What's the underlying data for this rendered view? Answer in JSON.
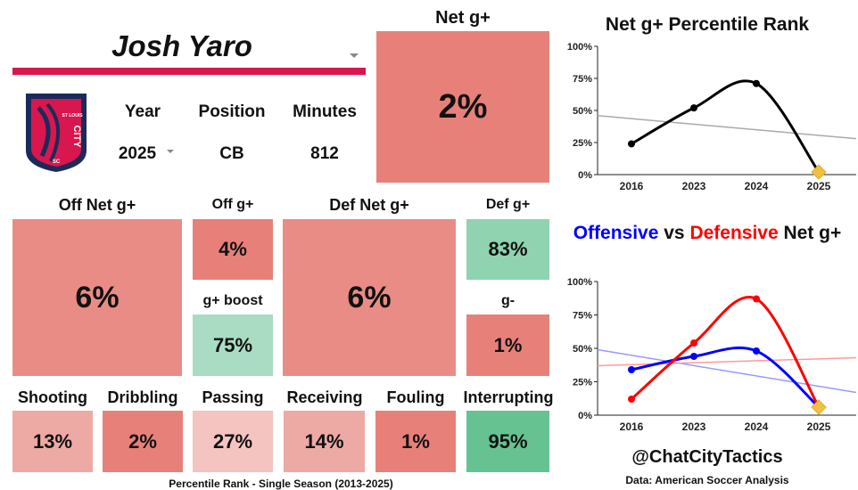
{
  "player": {
    "name": "Josh Yaro",
    "year_label": "Year",
    "year": "2025",
    "position_label": "Position",
    "position": "CB",
    "minutes_label": "Minutes",
    "minutes": "812"
  },
  "crest": {
    "line1": "ST LOUIS",
    "line2": "CITY",
    "line3": "SC"
  },
  "net": {
    "label": "Net g+",
    "value": "2%"
  },
  "off_net": {
    "label": "Off Net g+",
    "value": "6%"
  },
  "off_g": {
    "label": "Off g+",
    "value": "4%"
  },
  "g_boost": {
    "label": "g+ boost",
    "value": "75%"
  },
  "def_net": {
    "label": "Def Net g+",
    "value": "6%"
  },
  "def_g": {
    "label": "Def g+",
    "value": "83%"
  },
  "g_minus": {
    "label": "g-",
    "value": "1%"
  },
  "actions": [
    {
      "label": "Shooting",
      "value": "13%"
    },
    {
      "label": "Dribbling",
      "value": "2%"
    },
    {
      "label": "Passing",
      "value": "27%"
    },
    {
      "label": "Receiving",
      "value": "14%"
    },
    {
      "label": "Fouling",
      "value": "1%"
    },
    {
      "label": "Interrupting",
      "value": "95%"
    }
  ],
  "footer": "Percentile Rank - Single Season (2013-2025)",
  "handle": "@ChatCityTactics",
  "source": "Data: American Soccer Analysis",
  "colors": {
    "red_strong": "#e8807a",
    "red_mid": "#e98c86",
    "red_light": "#eda9a4",
    "red_pale": "#f3c4c0",
    "green_light": "#a9dcc3",
    "green_mid": "#8fd3b1",
    "green_strong": "#66c291",
    "brand_bar": "#d8174e"
  },
  "chart_data": [
    {
      "type": "line",
      "title": "Net g+ Percentile Rank",
      "categories": [
        "2016",
        "2023",
        "2024",
        "2025"
      ],
      "series": [
        {
          "values": [
            24,
            52,
            71,
            2
          ]
        }
      ],
      "trend": [
        46,
        28
      ],
      "ylim": [
        0,
        100
      ],
      "yticks": [
        "0%",
        "25%",
        "50%",
        "75%",
        "100%"
      ],
      "grid": false
    },
    {
      "type": "line",
      "title_parts": [
        "Offensive",
        " vs ",
        "Defensive",
        " Net g+"
      ],
      "categories": [
        "2016",
        "2023",
        "2024",
        "2025"
      ],
      "series": [
        {
          "values": [
            34,
            44,
            48,
            6
          ],
          "color": "#0000ff"
        },
        {
          "values": [
            12,
            54,
            87,
            6
          ],
          "color": "#ff0000"
        }
      ],
      "trends": [
        {
          "values": [
            49,
            17
          ],
          "color": "#9999ff"
        },
        {
          "values": [
            37,
            43
          ],
          "color": "#ff9999"
        }
      ],
      "ylim": [
        0,
        100
      ],
      "yticks": [
        "0%",
        "25%",
        "50%",
        "75%",
        "100%"
      ],
      "grid": false
    }
  ]
}
